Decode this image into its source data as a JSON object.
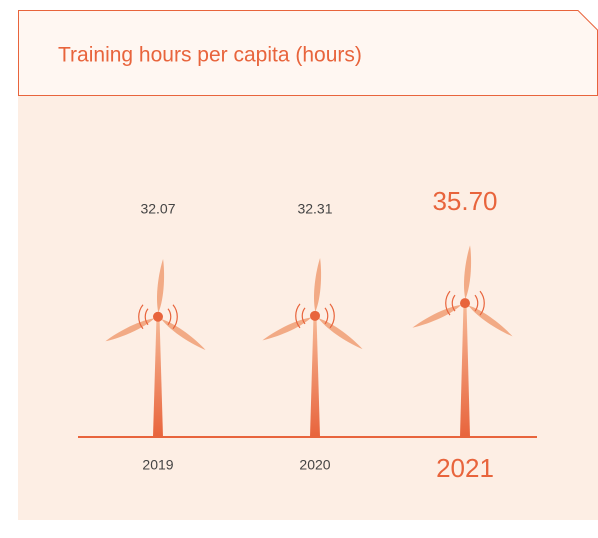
{
  "chart_data": {
    "type": "pictogram",
    "title": "Training hours per capita (hours)",
    "categories": [
      "2019",
      "2020",
      "2021"
    ],
    "values": [
      32.07,
      32.31,
      35.7
    ],
    "value_labels": [
      "32.07",
      "32.31",
      "35.70"
    ],
    "color": "#e8643c"
  }
}
